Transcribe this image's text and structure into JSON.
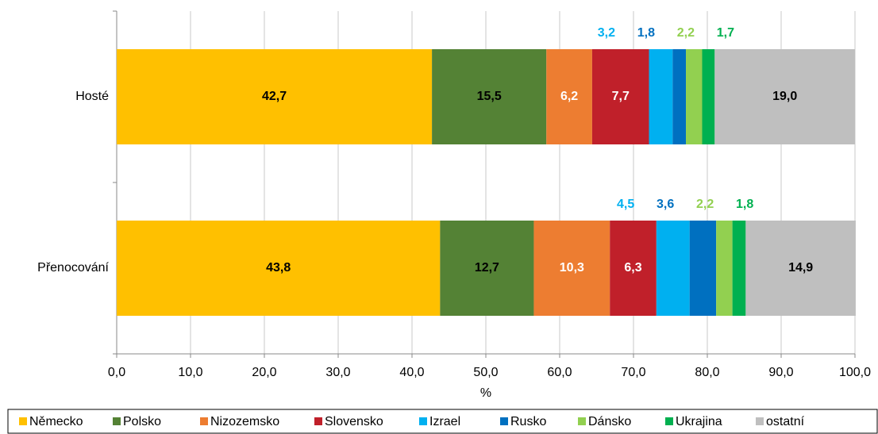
{
  "chart_data": {
    "type": "stacked-bar-horizontal",
    "categories": [
      "Hosté",
      "Přenocování"
    ],
    "xlabel": "%",
    "xlim": [
      0,
      100
    ],
    "xticks": [
      {
        "value": 0,
        "label": "0,0"
      },
      {
        "value": 10,
        "label": "10,0"
      },
      {
        "value": 20,
        "label": "20,0"
      },
      {
        "value": 30,
        "label": "30,0"
      },
      {
        "value": 40,
        "label": "40,0"
      },
      {
        "value": 50,
        "label": "50,0"
      },
      {
        "value": 60,
        "label": "60,0"
      },
      {
        "value": 70,
        "label": "70,0"
      },
      {
        "value": 80,
        "label": "80,0"
      },
      {
        "value": 90,
        "label": "90,0"
      },
      {
        "value": 100,
        "label": "100,0"
      }
    ],
    "grid": true,
    "legend": "bottom",
    "series": [
      {
        "name": "Německo",
        "color": "#FFC000",
        "values": [
          42.7,
          43.8
        ],
        "value_labels": [
          "42,7",
          "43,8"
        ]
      },
      {
        "name": "Polsko",
        "color": "#548235",
        "values": [
          15.5,
          12.7
        ],
        "value_labels": [
          "15,5",
          "12,7"
        ]
      },
      {
        "name": "Nizozemsko",
        "color": "#ED7D31",
        "values": [
          6.2,
          10.3
        ],
        "value_labels": [
          "6,2",
          "10,3"
        ]
      },
      {
        "name": "Slovensko",
        "color": "#C0202A",
        "values": [
          7.7,
          6.3
        ],
        "value_labels": [
          "7,7",
          "6,3"
        ]
      },
      {
        "name": "Izrael",
        "color": "#00B0F0",
        "values": [
          3.2,
          4.5
        ],
        "value_labels": [
          "3,2",
          "4,5"
        ]
      },
      {
        "name": "Rusko",
        "color": "#0070C0",
        "values": [
          1.8,
          3.6
        ],
        "value_labels": [
          "1,8",
          "3,6"
        ]
      },
      {
        "name": "Dánsko",
        "color": "#92D050",
        "values": [
          2.2,
          2.2
        ],
        "value_labels": [
          "2,2",
          "2,2"
        ]
      },
      {
        "name": "Ukrajina",
        "color": "#00B050",
        "values": [
          1.7,
          1.8
        ],
        "value_labels": [
          "1,7",
          "1,8"
        ]
      },
      {
        "name": "ostatní",
        "color": "#BFBFBF",
        "values": [
          19.0,
          14.9
        ],
        "value_labels": [
          "19,0",
          "14,9"
        ]
      }
    ]
  }
}
